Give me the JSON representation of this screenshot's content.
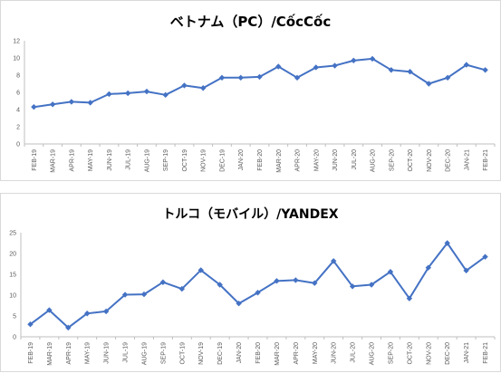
{
  "chart_data": [
    {
      "type": "line",
      "title": "ベトナム（PC）/CốcCốc",
      "xlabel": "",
      "ylabel": "",
      "ylim": [
        0,
        12
      ],
      "yticks": [
        0,
        2,
        4,
        6,
        8,
        10,
        12
      ],
      "grid": false,
      "legend": "none",
      "color": "#4472c4",
      "categories": [
        "FEB-19",
        "MAR-19",
        "APR-19",
        "MAY-19",
        "JUN-19",
        "JUL-19",
        "AUG-19",
        "SEP-19",
        "OCT-19",
        "NOV-19",
        "DEC-19",
        "JAN-20",
        "FEB-20",
        "MAR-20",
        "APR-20",
        "MAY-20",
        "JUN-20",
        "JUL-20",
        "AUG-20",
        "SEP-20",
        "OCT-20",
        "NOV-20",
        "DEC-20",
        "JAN-21",
        "FEB-21"
      ],
      "series": [
        {
          "values": [
            4.3,
            4.6,
            4.9,
            4.8,
            5.8,
            5.9,
            6.1,
            5.7,
            6.8,
            6.5,
            7.7,
            7.7,
            7.8,
            9.0,
            7.7,
            8.9,
            9.1,
            9.7,
            9.9,
            8.6,
            8.4,
            7.0,
            7.7,
            9.2,
            8.6
          ]
        }
      ]
    },
    {
      "type": "line",
      "title": "トルコ（モバイル）/YANDEX",
      "xlabel": "",
      "ylabel": "",
      "ylim": [
        0,
        25
      ],
      "yticks": [
        0,
        5,
        10,
        15,
        20,
        25
      ],
      "grid": false,
      "legend": "none",
      "color": "#4472c4",
      "categories": [
        "FEB-19",
        "MAR-19",
        "APR-19",
        "MAY-19",
        "JUN-19",
        "JUL-19",
        "AUG-19",
        "SEP-19",
        "OCT-19",
        "NOV-19",
        "DEC-19",
        "JAN-20",
        "FEB-20",
        "MAR-20",
        "APR-20",
        "MAY-20",
        "JUN-20",
        "JUL-20",
        "AUG-20",
        "SEP-20",
        "OCT-20",
        "NOV-20",
        "DEC-20",
        "JAN-21",
        "FEB-21"
      ],
      "series": [
        {
          "values": [
            3.0,
            6.4,
            2.2,
            5.6,
            6.1,
            10.1,
            10.2,
            13.1,
            11.5,
            16.0,
            12.5,
            8.0,
            10.6,
            13.4,
            13.6,
            12.9,
            18.2,
            12.1,
            12.5,
            15.6,
            9.2,
            16.6,
            22.5,
            15.9,
            19.2
          ]
        }
      ]
    }
  ]
}
